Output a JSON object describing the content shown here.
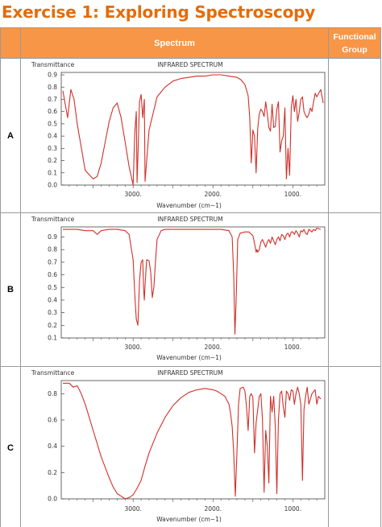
{
  "page": {
    "title": "Exercise 1: Exploring Spectroscopy"
  },
  "table": {
    "headers": {
      "spectrum": "Spectrum",
      "functional_group_line1": "Functional",
      "functional_group_line2": "Group"
    },
    "rows": [
      {
        "label": "A",
        "functional_group": ""
      },
      {
        "label": "B",
        "functional_group": ""
      },
      {
        "label": "C",
        "functional_group": ""
      }
    ]
  },
  "colors": {
    "title": "#e46c0a",
    "header_fill": "#f79646",
    "trace": "#d0302a"
  },
  "chart_data": [
    {
      "type": "line",
      "title": "INFRARED SPECTRUM",
      "ylabel": "Transmittance",
      "xlabel": "Wavenumber (cm−1)",
      "x_ticks": [
        "3000.",
        "2000.",
        "1000."
      ],
      "y_ticks": [
        "0.0",
        "0.1",
        "0.2",
        "0.3",
        "0.4",
        "0.5",
        "0.6",
        "0.7",
        "0.8",
        "0.9"
      ],
      "xlim": [
        3900,
        600
      ],
      "ylim": [
        0,
        0.92
      ],
      "x_reversed": true,
      "series": [
        {
          "x": [
            3880,
            3820,
            3780,
            3740,
            3700,
            3600,
            3500,
            3450,
            3400,
            3350,
            3300,
            3250,
            3200,
            3150,
            3100,
            3050,
            3000,
            2980,
            2960,
            2950,
            2930,
            2920,
            2900,
            2880,
            2860,
            2850,
            2800,
            2700,
            2600,
            2500,
            2400,
            2300,
            2200,
            2100,
            2000,
            1900,
            1800,
            1700,
            1650,
            1600,
            1560,
            1540,
            1520,
            1500,
            1480,
            1460,
            1440,
            1420,
            1400,
            1380,
            1360,
            1340,
            1320,
            1300,
            1280,
            1260,
            1240,
            1220,
            1200,
            1180,
            1160,
            1140,
            1120,
            1100,
            1080,
            1060,
            1040,
            1020,
            1000,
            980,
            960,
            940,
            920,
            900,
            880,
            860,
            840,
            820,
            800,
            780,
            760,
            740,
            720,
            700,
            650,
            620
          ],
          "y": [
            0.77,
            0.55,
            0.78,
            0.7,
            0.5,
            0.12,
            0.05,
            0.07,
            0.18,
            0.35,
            0.52,
            0.63,
            0.67,
            0.55,
            0.35,
            0.15,
            0.0,
            0.42,
            0.6,
            0.02,
            0.45,
            0.68,
            0.74,
            0.55,
            0.7,
            0.03,
            0.45,
            0.72,
            0.8,
            0.85,
            0.87,
            0.88,
            0.89,
            0.89,
            0.9,
            0.9,
            0.89,
            0.88,
            0.86,
            0.82,
            0.73,
            0.55,
            0.18,
            0.45,
            0.4,
            0.1,
            0.46,
            0.58,
            0.62,
            0.6,
            0.56,
            0.68,
            0.58,
            0.47,
            0.44,
            0.66,
            0.47,
            0.48,
            0.62,
            0.68,
            0.27,
            0.36,
            0.4,
            0.63,
            0.05,
            0.3,
            0.08,
            0.63,
            0.73,
            0.6,
            0.7,
            0.52,
            0.6,
            0.7,
            0.72,
            0.6,
            0.57,
            0.55,
            0.58,
            0.63,
            0.6,
            0.68,
            0.75,
            0.72,
            0.78,
            0.67
          ]
        }
      ]
    },
    {
      "type": "line",
      "title": "INFRARED SPECTRUM",
      "ylabel": "Transmittance",
      "xlabel": "Wavenumber (cm−1)",
      "x_ticks": [
        "3000.",
        "2000.",
        "1000."
      ],
      "y_ticks": [
        "0.1",
        "0.2",
        "0.3",
        "0.4",
        "0.5",
        "0.6",
        "0.7",
        "0.8",
        "0.9"
      ],
      "xlim": [
        3900,
        600
      ],
      "ylim": [
        0.1,
        0.98
      ],
      "x_reversed": true,
      "series": [
        {
          "x": [
            3880,
            3800,
            3700,
            3600,
            3500,
            3450,
            3400,
            3300,
            3200,
            3100,
            3050,
            3000,
            2980,
            2960,
            2940,
            2920,
            2900,
            2880,
            2870,
            2860,
            2850,
            2830,
            2800,
            2780,
            2760,
            2740,
            2720,
            2700,
            2650,
            2600,
            2500,
            2300,
            2100,
            1900,
            1800,
            1760,
            1740,
            1725,
            1710,
            1690,
            1660,
            1600,
            1550,
            1500,
            1480,
            1460,
            1450,
            1440,
            1420,
            1400,
            1380,
            1360,
            1340,
            1320,
            1300,
            1280,
            1260,
            1240,
            1220,
            1200,
            1180,
            1160,
            1140,
            1120,
            1100,
            1080,
            1060,
            1040,
            1020,
            1000,
            980,
            960,
            940,
            920,
            900,
            880,
            860,
            840,
            820,
            800,
            780,
            760,
            740,
            720,
            700,
            650
          ],
          "y": [
            0.96,
            0.96,
            0.96,
            0.95,
            0.95,
            0.92,
            0.95,
            0.96,
            0.96,
            0.95,
            0.92,
            0.72,
            0.45,
            0.25,
            0.2,
            0.55,
            0.7,
            0.72,
            0.5,
            0.4,
            0.52,
            0.72,
            0.71,
            0.62,
            0.42,
            0.5,
            0.7,
            0.88,
            0.95,
            0.96,
            0.96,
            0.96,
            0.96,
            0.96,
            0.95,
            0.9,
            0.6,
            0.13,
            0.4,
            0.88,
            0.93,
            0.94,
            0.94,
            0.91,
            0.85,
            0.78,
            0.8,
            0.78,
            0.8,
            0.86,
            0.88,
            0.85,
            0.82,
            0.86,
            0.88,
            0.85,
            0.9,
            0.87,
            0.84,
            0.88,
            0.9,
            0.87,
            0.92,
            0.91,
            0.88,
            0.92,
            0.93,
            0.9,
            0.94,
            0.94,
            0.92,
            0.95,
            0.93,
            0.9,
            0.95,
            0.94,
            0.96,
            0.93,
            0.92,
            0.96,
            0.95,
            0.94,
            0.96,
            0.95,
            0.97,
            0.96
          ]
        }
      ]
    },
    {
      "type": "line",
      "title": "INFRARED SPECTRUM",
      "ylabel": "Transmittance",
      "xlabel": "Wavenumber (cm−1)",
      "x_ticks": [
        "3000.",
        "2000.",
        "1000."
      ],
      "y_ticks": [
        "0.0",
        "0.2",
        "0.4",
        "0.6",
        "0.8"
      ],
      "xlim": [
        3900,
        600
      ],
      "ylim": [
        0,
        0.9
      ],
      "x_reversed": true,
      "series": [
        {
          "x": [
            3880,
            3800,
            3750,
            3700,
            3650,
            3600,
            3550,
            3500,
            3450,
            3400,
            3350,
            3300,
            3250,
            3200,
            3150,
            3100,
            3050,
            3000,
            2950,
            2900,
            2850,
            2800,
            2700,
            2600,
            2500,
            2400,
            2300,
            2200,
            2100,
            2000,
            1950,
            1900,
            1850,
            1800,
            1780,
            1760,
            1740,
            1720,
            1700,
            1680,
            1660,
            1620,
            1600,
            1580,
            1560,
            1540,
            1520,
            1500,
            1480,
            1460,
            1440,
            1420,
            1400,
            1380,
            1360,
            1340,
            1320,
            1300,
            1280,
            1260,
            1240,
            1220,
            1200,
            1180,
            1160,
            1140,
            1120,
            1100,
            1080,
            1060,
            1040,
            1020,
            1000,
            980,
            960,
            940,
            920,
            900,
            880,
            860,
            840,
            820,
            800,
            760,
            720,
            700,
            680,
            650
          ],
          "y": [
            0.88,
            0.88,
            0.85,
            0.86,
            0.8,
            0.72,
            0.62,
            0.52,
            0.42,
            0.32,
            0.24,
            0.16,
            0.09,
            0.04,
            0.02,
            0.0,
            0.01,
            0.03,
            0.08,
            0.14,
            0.25,
            0.35,
            0.5,
            0.62,
            0.71,
            0.77,
            0.81,
            0.83,
            0.84,
            0.83,
            0.82,
            0.8,
            0.78,
            0.72,
            0.65,
            0.55,
            0.35,
            0.02,
            0.35,
            0.72,
            0.84,
            0.85,
            0.82,
            0.7,
            0.52,
            0.78,
            0.8,
            0.77,
            0.35,
            0.58,
            0.68,
            0.78,
            0.8,
            0.6,
            0.05,
            0.52,
            0.4,
            0.12,
            0.78,
            0.66,
            0.78,
            0.55,
            0.04,
            0.6,
            0.8,
            0.82,
            0.7,
            0.62,
            0.82,
            0.8,
            0.75,
            0.83,
            0.82,
            0.72,
            0.8,
            0.85,
            0.8,
            0.72,
            0.14,
            0.68,
            0.78,
            0.85,
            0.72,
            0.8,
            0.83,
            0.72,
            0.78,
            0.76
          ]
        }
      ]
    }
  ]
}
